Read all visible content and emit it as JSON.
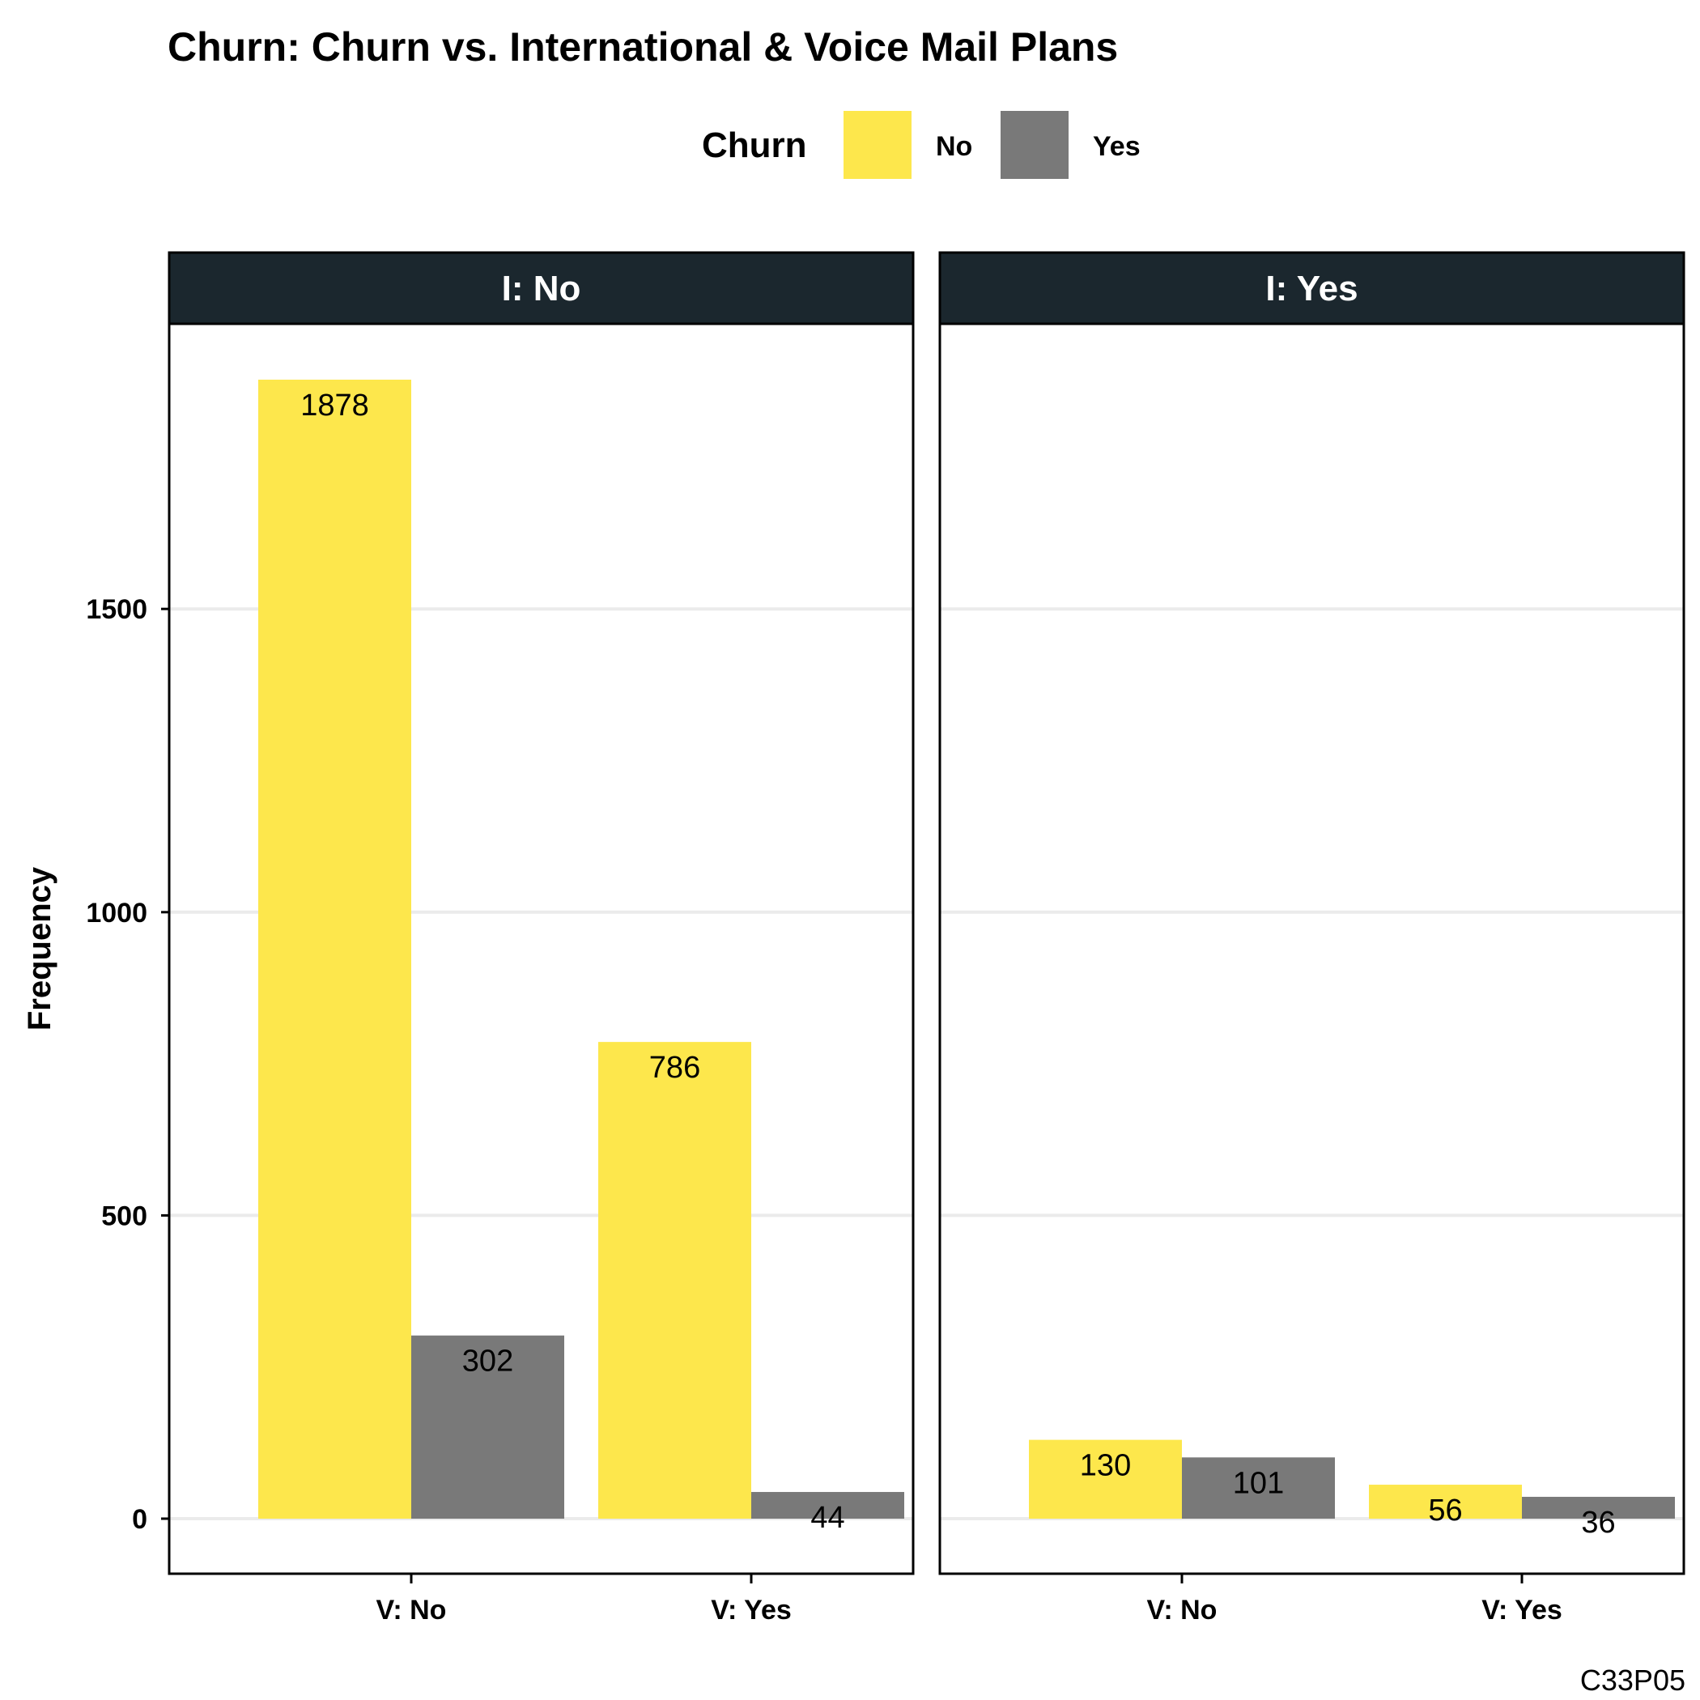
{
  "chart_data": {
    "type": "bar",
    "title": "Churn: Churn vs. International & Voice Mail Plans",
    "xlabel": "",
    "ylabel": "Frequency",
    "caption": "C33P05",
    "legend": {
      "title": "Churn",
      "position": "top"
    },
    "grid": true,
    "ylim": [
      -90,
      2000
    ],
    "yticks": [
      0,
      500,
      1000,
      1500
    ],
    "categories": [
      "V: No",
      "V: Yes"
    ],
    "series_names": [
      "No",
      "Yes"
    ],
    "colors": {
      "No": "#FDE74C",
      "Yes": "#797979",
      "strip": "#1B272E",
      "grid": "#EBEBEB"
    },
    "facets": [
      {
        "label": "I: No",
        "series": [
          {
            "name": "No",
            "values": [
              1878,
              786
            ]
          },
          {
            "name": "Yes",
            "values": [
              302,
              44
            ]
          }
        ]
      },
      {
        "label": "I: Yes",
        "series": [
          {
            "name": "No",
            "values": [
              130,
              56
            ]
          },
          {
            "name": "Yes",
            "values": [
              101,
              36
            ]
          }
        ]
      }
    ]
  }
}
